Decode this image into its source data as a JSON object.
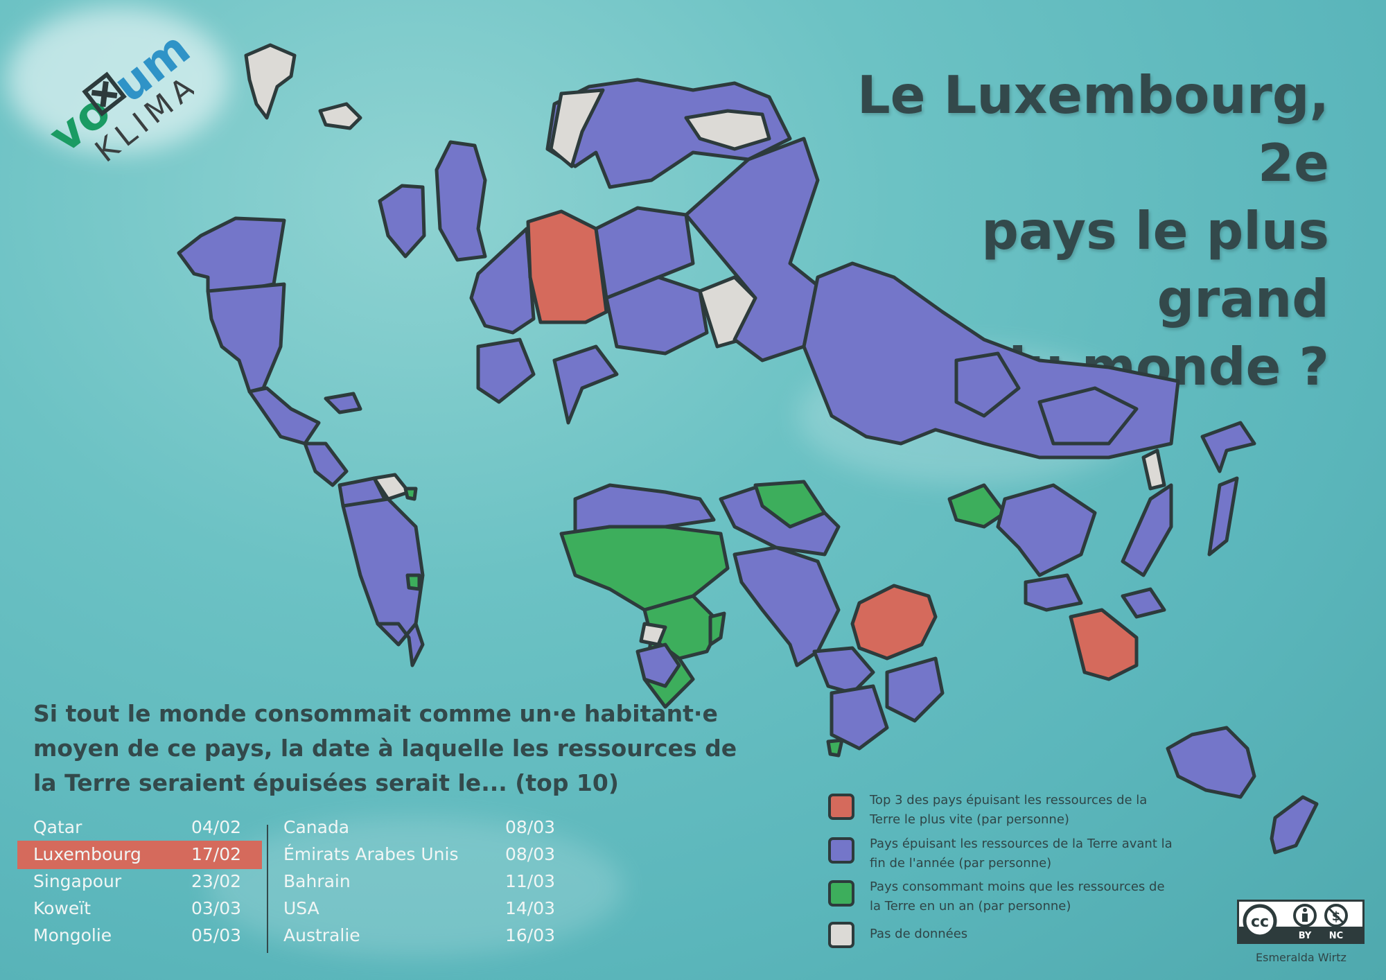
{
  "logo": {
    "word": "vo",
    "word2": "um",
    "sub": "KLIMA"
  },
  "title": [
    "Le Luxembourg, 2e",
    "pays le plus grand",
    "du monde ?"
  ],
  "subtitle": [
    "Si tout le monde consommait comme un·e habitant·e",
    "moyen de ce pays, la date à laquelle les ressources de",
    "la Terre seraient épuisées serait le... (top 10)"
  ],
  "ranking_left": [
    {
      "country": "Qatar",
      "date": "04/02"
    },
    {
      "country": "Luxembourg",
      "date": "17/02"
    },
    {
      "country": "Singapour",
      "date": "23/02"
    },
    {
      "country": "Koweït",
      "date": "03/03"
    },
    {
      "country": "Mongolie",
      "date": "05/03"
    }
  ],
  "ranking_right": [
    {
      "country": "Canada",
      "date": "08/03"
    },
    {
      "country": "Émirats Arabes Unis",
      "date": "08/03"
    },
    {
      "country": "Bahrain",
      "date": "11/03"
    },
    {
      "country": "USA",
      "date": "14/03"
    },
    {
      "country": "Australie",
      "date": "16/03"
    }
  ],
  "highlight_color": "#d56a5c",
  "legend": [
    {
      "color": "#d56a5c",
      "text": "Top 3 des pays épuisant les ressources de la Terre le plus vite (par personne)"
    },
    {
      "color": "#7476c9",
      "text": "Pays épuisant les ressources de la Terre avant la fin de l'année (par personne)"
    },
    {
      "color": "#3dae5c",
      "text": "Pays consommant moins que les ressources de la Terre en un an (par personne)"
    },
    {
      "color": "#dcdad6",
      "text": "Pas de données"
    }
  ],
  "license": {
    "cc": "cc",
    "by": "BY",
    "nc": "NC"
  },
  "author": "Esmeralda Wirtz",
  "colors": {
    "overspend": "#7476c9",
    "top3": "#d56a5c",
    "under": "#3dae5c",
    "nodata": "#dcdad6",
    "border": "#2d3b3c"
  }
}
